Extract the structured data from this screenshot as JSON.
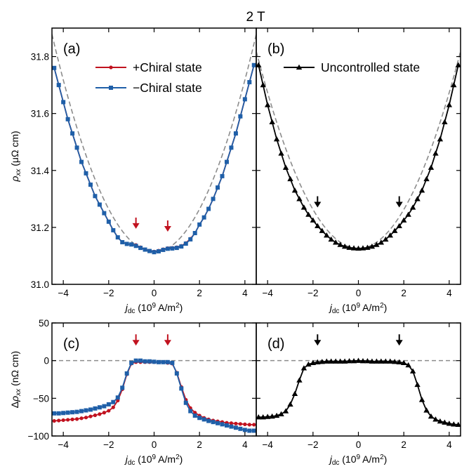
{
  "figure_title": "2 T",
  "colors": {
    "plus": "#c1121f",
    "minus": "#1f5fa8",
    "uncontrolled": "#000000",
    "fit_dashed": "#8c8c8c",
    "arrow_red": "#c1121f",
    "arrow_black": "#000000"
  },
  "chart_data": [
    {
      "id": "a",
      "type": "line",
      "panel_label": "(a)",
      "xlabel": "j_dc (10^9 A/m^2)",
      "ylabel": "ρ_xx (μΩ cm)",
      "xlim": [
        -4.5,
        4.5
      ],
      "ylim": [
        31.0,
        31.9
      ],
      "xticks": [
        -4,
        -2,
        0,
        2,
        4
      ],
      "yticks": [
        31.0,
        31.2,
        31.4,
        31.6,
        31.8
      ],
      "legend": {
        "position": "top-center",
        "entries": [
          "+Chiral state",
          "−Chiral state"
        ]
      },
      "x": [
        -4.4,
        -4.2,
        -4.0,
        -3.8,
        -3.6,
        -3.4,
        -3.2,
        -3.0,
        -2.8,
        -2.6,
        -2.4,
        -2.2,
        -2.0,
        -1.8,
        -1.6,
        -1.4,
        -1.2,
        -1.0,
        -0.8,
        -0.6,
        -0.4,
        -0.2,
        0.0,
        0.2,
        0.4,
        0.6,
        0.8,
        1.0,
        1.2,
        1.4,
        1.6,
        1.8,
        2.0,
        2.2,
        2.4,
        2.6,
        2.8,
        3.0,
        3.2,
        3.4,
        3.6,
        3.8,
        4.0,
        4.2,
        4.4
      ],
      "series": [
        {
          "name": "+Chiral state",
          "marker": "circle",
          "values": [
            31.76,
            31.7,
            31.64,
            31.58,
            31.53,
            31.48,
            31.43,
            31.39,
            31.35,
            31.31,
            31.28,
            31.25,
            31.22,
            31.19,
            31.165,
            31.148,
            31.142,
            31.14,
            31.138,
            31.13,
            31.123,
            31.118,
            31.115,
            31.118,
            31.123,
            31.127,
            31.128,
            31.13,
            31.135,
            31.145,
            31.16,
            31.18,
            31.21,
            31.235,
            31.265,
            31.3,
            31.34,
            31.38,
            31.43,
            31.48,
            31.53,
            31.59,
            31.65,
            31.71,
            31.77
          ]
        },
        {
          "name": "−Chiral state",
          "marker": "square",
          "values": [
            31.76,
            31.7,
            31.64,
            31.58,
            31.53,
            31.48,
            31.43,
            31.39,
            31.35,
            31.31,
            31.28,
            31.25,
            31.22,
            31.19,
            31.165,
            31.148,
            31.142,
            31.14,
            31.135,
            31.128,
            31.122,
            31.117,
            31.113,
            31.116,
            31.121,
            31.125,
            31.126,
            31.128,
            31.133,
            31.143,
            31.158,
            31.18,
            31.21,
            31.235,
            31.265,
            31.3,
            31.34,
            31.38,
            31.43,
            31.48,
            31.53,
            31.59,
            31.65,
            31.71,
            31.77
          ]
        }
      ],
      "fit_curve": {
        "style": "dashed",
        "x0": 0,
        "y0": 31.113,
        "curvature": 0.0378
      },
      "arrows": [
        {
          "x": -0.8,
          "y": 31.195
        },
        {
          "x": 0.6,
          "y": 31.185
        }
      ]
    },
    {
      "id": "b",
      "type": "line",
      "panel_label": "(b)",
      "xlabel": "j_dc (10^9 A/m^2)",
      "ylabel": "",
      "xlim": [
        -4.5,
        4.5
      ],
      "ylim": [
        31.0,
        31.9
      ],
      "xticks": [
        -4,
        -2,
        0,
        2,
        4
      ],
      "yticks": [
        31.0,
        31.2,
        31.4,
        31.6,
        31.8
      ],
      "legend": {
        "position": "top-right",
        "entries": [
          "Uncontrolled state"
        ]
      },
      "x": [
        -4.4,
        -4.2,
        -4.0,
        -3.8,
        -3.6,
        -3.4,
        -3.2,
        -3.0,
        -2.8,
        -2.6,
        -2.4,
        -2.2,
        -2.0,
        -1.8,
        -1.6,
        -1.4,
        -1.2,
        -1.0,
        -0.8,
        -0.6,
        -0.4,
        -0.2,
        0.0,
        0.2,
        0.4,
        0.6,
        0.8,
        1.0,
        1.2,
        1.4,
        1.6,
        1.8,
        2.0,
        2.2,
        2.4,
        2.6,
        2.8,
        3.0,
        3.2,
        3.4,
        3.6,
        3.8,
        4.0,
        4.2,
        4.4
      ],
      "series": [
        {
          "name": "Uncontrolled state",
          "marker": "triangle",
          "values": [
            31.77,
            31.7,
            31.63,
            31.57,
            31.51,
            31.46,
            31.41,
            31.37,
            31.33,
            31.3,
            31.27,
            31.245,
            31.225,
            31.205,
            31.188,
            31.172,
            31.158,
            31.147,
            31.139,
            31.133,
            31.129,
            31.127,
            31.126,
            31.127,
            31.129,
            31.133,
            31.139,
            31.147,
            31.158,
            31.172,
            31.188,
            31.205,
            31.225,
            31.245,
            31.27,
            31.3,
            31.33,
            31.37,
            31.41,
            31.46,
            31.51,
            31.57,
            31.63,
            31.7,
            31.77
          ]
        }
      ],
      "fit_curve": {
        "style": "dashed",
        "x0": 0,
        "y0": 31.126,
        "curvature": 0.0342
      },
      "arrows": [
        {
          "x": -1.8,
          "y": 31.27
        },
        {
          "x": 1.8,
          "y": 31.27
        }
      ]
    },
    {
      "id": "c",
      "type": "line",
      "panel_label": "(c)",
      "xlabel": "j_dc (10^9 A/m^2)",
      "ylabel": "Δρ_xx (nΩ cm)",
      "xlim": [
        -4.5,
        4.5
      ],
      "ylim": [
        -100,
        50
      ],
      "xticks": [
        -4,
        -2,
        0,
        2,
        4
      ],
      "yticks": [
        -100,
        -50,
        0,
        50
      ],
      "zero_line": true,
      "x": [
        -4.4,
        -4.2,
        -4.0,
        -3.8,
        -3.6,
        -3.4,
        -3.2,
        -3.0,
        -2.8,
        -2.6,
        -2.4,
        -2.2,
        -2.0,
        -1.8,
        -1.6,
        -1.4,
        -1.2,
        -1.0,
        -0.8,
        -0.6,
        -0.4,
        -0.2,
        0.0,
        0.2,
        0.4,
        0.6,
        0.8,
        1.0,
        1.2,
        1.4,
        1.6,
        1.8,
        2.0,
        2.2,
        2.4,
        2.6,
        2.8,
        3.0,
        3.2,
        3.4,
        3.6,
        3.8,
        4.0,
        4.2,
        4.4
      ],
      "series": [
        {
          "name": "+Chiral state",
          "marker": "circle",
          "values": [
            -80,
            -79.5,
            -79,
            -78.5,
            -78,
            -77.5,
            -76.5,
            -75.5,
            -74,
            -72.5,
            -71,
            -69,
            -66.5,
            -62,
            -53,
            -38,
            -18,
            -4,
            -2,
            -2,
            -2,
            -2,
            -2,
            -2,
            -2,
            -3,
            -4,
            -16,
            -35,
            -52,
            -63,
            -69,
            -73,
            -76,
            -78,
            -79.5,
            -80.5,
            -81.5,
            -82.5,
            -83,
            -83.5,
            -84,
            -84.5,
            -85,
            -85
          ]
        },
        {
          "name": "−Chiral state",
          "marker": "square",
          "values": [
            -70,
            -70,
            -69.5,
            -69,
            -68.5,
            -68,
            -67,
            -66,
            -65,
            -63.5,
            -62,
            -60.5,
            -58,
            -55,
            -49,
            -36,
            -17,
            -3,
            0,
            0,
            -1,
            -1,
            -1.5,
            -2,
            -2,
            -2,
            -3,
            -17,
            -37,
            -56,
            -67,
            -73,
            -76,
            -78,
            -80,
            -81.5,
            -83,
            -84.5,
            -86,
            -87.5,
            -89,
            -90.5,
            -92,
            -93,
            -93
          ]
        }
      ],
      "arrows": [
        {
          "x": -0.8,
          "y": 20
        },
        {
          "x": 0.6,
          "y": 20
        }
      ]
    },
    {
      "id": "d",
      "type": "line",
      "panel_label": "(d)",
      "xlabel": "j_dc (10^9 A/m^2)",
      "ylabel": "",
      "xlim": [
        -4.5,
        4.5
      ],
      "ylim": [
        -100,
        50
      ],
      "xticks": [
        -4,
        -2,
        0,
        2,
        4
      ],
      "yticks": [
        -100,
        -50,
        0,
        50
      ],
      "zero_line": true,
      "x": [
        -4.4,
        -4.2,
        -4.0,
        -3.8,
        -3.6,
        -3.4,
        -3.2,
        -3.0,
        -2.8,
        -2.6,
        -2.4,
        -2.2,
        -2.0,
        -1.8,
        -1.6,
        -1.4,
        -1.2,
        -1.0,
        -0.8,
        -0.6,
        -0.4,
        -0.2,
        0.0,
        0.2,
        0.4,
        0.6,
        0.8,
        1.0,
        1.2,
        1.4,
        1.6,
        1.8,
        2.0,
        2.2,
        2.4,
        2.6,
        2.8,
        3.0,
        3.2,
        3.4,
        3.6,
        3.8,
        4.0,
        4.2,
        4.4
      ],
      "series": [
        {
          "name": "Uncontrolled state",
          "marker": "triangle",
          "values": [
            -75,
            -75,
            -74.5,
            -74,
            -73,
            -71,
            -67,
            -58,
            -44,
            -26,
            -10,
            -5,
            -3,
            -2,
            -1.5,
            -1,
            -1,
            -1,
            -1,
            -1,
            -0.5,
            -0.5,
            0,
            -0.5,
            -0.5,
            -1,
            -1,
            -1,
            -1,
            -1,
            -1.5,
            -2,
            -3,
            -6,
            -14,
            -32,
            -52,
            -66,
            -74,
            -78,
            -80.5,
            -82,
            -83.5,
            -84.5,
            -85
          ]
        }
      ],
      "arrows": [
        {
          "x": -1.8,
          "y": 20
        },
        {
          "x": 1.8,
          "y": 20
        }
      ]
    }
  ]
}
